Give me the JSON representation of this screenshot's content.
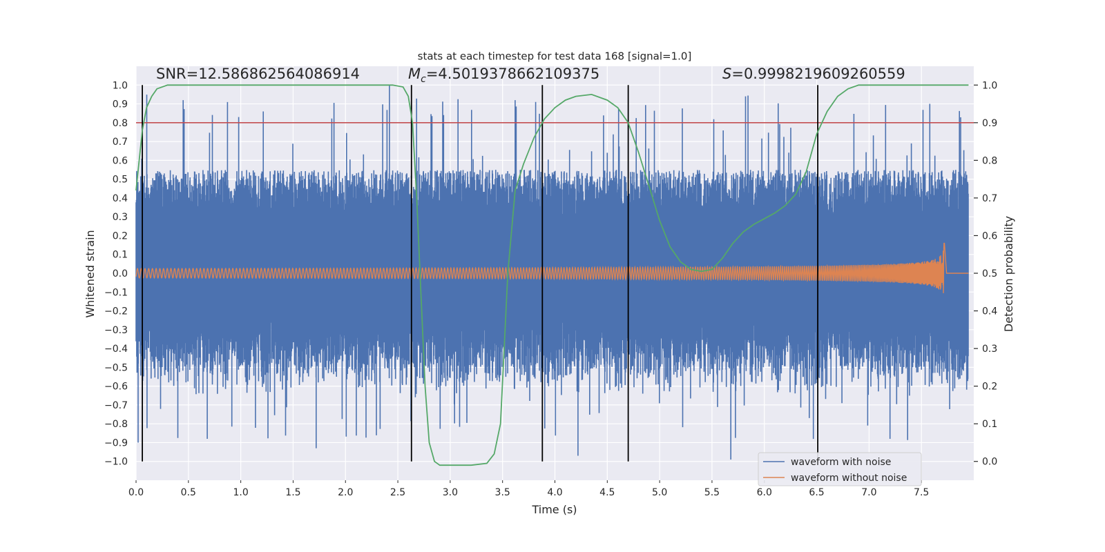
{
  "chart_data": {
    "type": "line",
    "title": "stats at each timestep for test data 168 [signal=1.0]",
    "xlabel": "Time (s)",
    "ylabel": "Whitened strain",
    "ylabel_right": "Detection probability",
    "xlim": [
      0.0,
      8.0
    ],
    "ylim": [
      -1.1,
      1.1
    ],
    "ylim_right": [
      -0.05,
      1.05
    ],
    "x_ticks": [
      0.0,
      0.5,
      1.0,
      1.5,
      2.0,
      2.5,
      3.0,
      3.5,
      4.0,
      4.5,
      5.0,
      5.5,
      6.0,
      6.5,
      7.0,
      7.5
    ],
    "x_tick_labels": [
      "0.0",
      "0.5",
      "1.0",
      "1.5",
      "2.0",
      "2.5",
      "3.0",
      "3.5",
      "4.0",
      "4.5",
      "5.0",
      "5.5",
      "6.0",
      "6.5",
      "7.0",
      "7.5"
    ],
    "y_ticks": [
      -1.0,
      -0.9,
      -0.8,
      -0.7,
      -0.6,
      -0.5,
      -0.4,
      -0.3,
      -0.2,
      -0.1,
      0.0,
      0.1,
      0.2,
      0.3,
      0.4,
      0.5,
      0.6,
      0.7,
      0.8,
      0.9,
      1.0
    ],
    "y_tick_labels": [
      "−1.0",
      "−0.9",
      "−0.8",
      "−0.7",
      "−0.6",
      "−0.5",
      "−0.4",
      "−0.3",
      "−0.2",
      "−0.1",
      "0.0",
      "0.1",
      "0.2",
      "0.3",
      "0.4",
      "0.5",
      "0.6",
      "0.7",
      "0.8",
      "0.9",
      "1.0"
    ],
    "y_right_ticks": [
      0.0,
      0.1,
      0.2,
      0.3,
      0.4,
      0.5,
      0.6,
      0.7,
      0.8,
      0.9,
      1.0
    ],
    "y_right_tick_labels": [
      "0.0",
      "0.1",
      "0.2",
      "0.3",
      "0.4",
      "0.5",
      "0.6",
      "0.7",
      "0.8",
      "0.9",
      "1.0"
    ],
    "annotations": {
      "snr": "SNR=12.586862564086914",
      "mc_symbol": "M",
      "mc_subscript": "c",
      "mc_value": "=4.5019378662109375",
      "s_symbol": "S",
      "s_value": "=0.9998219609260559"
    },
    "threshold": {
      "y": 0.8,
      "color": "#c44e52"
    },
    "vertical_lines": [
      0.06,
      2.63,
      3.88,
      4.7,
      6.51
    ],
    "series": [
      {
        "name": "waveform with noise",
        "color": "#4c72b0",
        "kind": "noise",
        "amplitude_typical": 0.55,
        "peak": 1.0,
        "x_end": 7.95
      },
      {
        "name": "waveform without noise",
        "color": "#dd8452",
        "kind": "chirp",
        "amplitude_start": 0.025,
        "amplitude_end": 0.27,
        "x_merger": 7.72
      },
      {
        "name": "",
        "color": "#55a868",
        "axis": "right",
        "x": [
          0.0,
          0.06,
          0.1,
          0.15,
          0.2,
          0.3,
          0.4,
          0.6,
          1.0,
          1.5,
          2.0,
          2.3,
          2.45,
          2.55,
          2.6,
          2.64,
          2.68,
          2.72,
          2.76,
          2.8,
          2.85,
          2.9,
          3.0,
          3.2,
          3.35,
          3.42,
          3.48,
          3.55,
          3.62,
          3.7,
          3.8,
          3.9,
          4.0,
          4.1,
          4.2,
          4.35,
          4.5,
          4.6,
          4.7,
          4.8,
          4.9,
          5.0,
          5.1,
          5.2,
          5.3,
          5.4,
          5.5,
          5.6,
          5.7,
          5.8,
          5.9,
          6.0,
          6.1,
          6.2,
          6.3,
          6.4,
          6.5,
          6.6,
          6.7,
          6.8,
          6.9,
          7.0,
          7.2,
          7.5,
          7.95
        ],
        "y": [
          0.72,
          0.88,
          0.94,
          0.97,
          0.99,
          1.0,
          1.0,
          1.0,
          1.0,
          1.0,
          1.0,
          1.0,
          1.0,
          0.995,
          0.97,
          0.9,
          0.7,
          0.45,
          0.2,
          0.05,
          0.0,
          -0.01,
          -0.01,
          -0.01,
          -0.005,
          0.02,
          0.1,
          0.5,
          0.72,
          0.79,
          0.86,
          0.91,
          0.94,
          0.96,
          0.97,
          0.975,
          0.96,
          0.94,
          0.9,
          0.82,
          0.73,
          0.64,
          0.57,
          0.53,
          0.51,
          0.505,
          0.51,
          0.54,
          0.58,
          0.61,
          0.63,
          0.645,
          0.66,
          0.68,
          0.71,
          0.77,
          0.87,
          0.93,
          0.97,
          0.99,
          1.0,
          1.0,
          1.0,
          1.0,
          1.0
        ]
      }
    ],
    "legend_position": "bottom-right",
    "grid": true
  }
}
